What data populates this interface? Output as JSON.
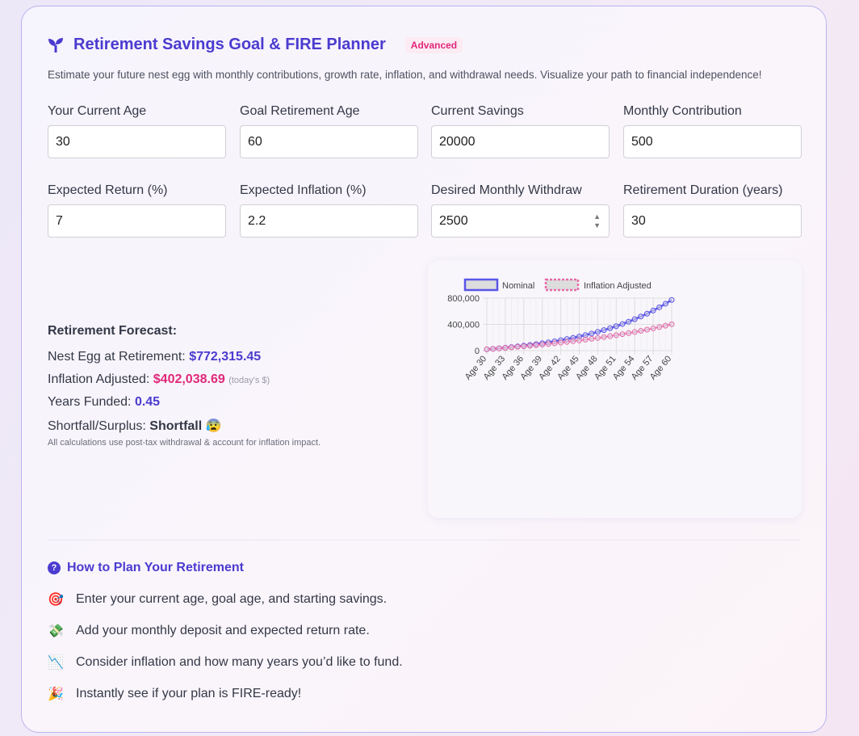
{
  "header": {
    "title": "Retirement Savings Goal & FIRE Planner",
    "badge": "Advanced",
    "subtitle": "Estimate your future nest egg with monthly contributions, growth rate, inflation, and withdrawal needs. Visualize your path to financial independence!"
  },
  "fields": [
    {
      "label": "Your Current Age",
      "value": "30"
    },
    {
      "label": "Goal Retirement Age",
      "value": "60"
    },
    {
      "label": "Current Savings",
      "value": "20000"
    },
    {
      "label": "Monthly Contribution",
      "value": "500"
    },
    {
      "label": "Expected Return (%)",
      "value": "7"
    },
    {
      "label": "Expected Inflation (%)",
      "value": "2.2"
    },
    {
      "label": "Desired Monthly Withdraw",
      "value": "2500"
    },
    {
      "label": "Retirement Duration (years)",
      "value": "30"
    }
  ],
  "forecast": {
    "heading": "Retirement Forecast:",
    "nest_label": "Nest Egg at Retirement:",
    "nest_value": "$772,315.45",
    "infl_label": "Inflation Adjusted:",
    "infl_value": "$402,038.69",
    "infl_note": "(today's $)",
    "years_label": "Years Funded:",
    "years_value": "0.45",
    "short_label": "Shortfall/Surplus:",
    "short_value": "Shortfall",
    "short_emoji": "😰",
    "note": "All calculations use post-tax withdrawal & account for inflation impact."
  },
  "chart_data": {
    "type": "line",
    "title": "",
    "xlabel": "",
    "ylabel": "",
    "ylim": [
      0,
      800000
    ],
    "yticks": [
      "0",
      "400,000",
      "800,000"
    ],
    "ytick_values": [
      0,
      400000,
      800000
    ],
    "x": [
      "Age 30",
      "Age 31",
      "Age 32",
      "Age 33",
      "Age 34",
      "Age 35",
      "Age 36",
      "Age 37",
      "Age 38",
      "Age 39",
      "Age 40",
      "Age 41",
      "Age 42",
      "Age 43",
      "Age 44",
      "Age 45",
      "Age 46",
      "Age 47",
      "Age 48",
      "Age 49",
      "Age 50",
      "Age 51",
      "Age 52",
      "Age 53",
      "Age 54",
      "Age 55",
      "Age 56",
      "Age 57",
      "Age 58",
      "Age 59",
      "Age 60"
    ],
    "legend_position": "top",
    "grid": true,
    "series": [
      {
        "name": "Nominal",
        "color": "#5b55e8",
        "values": [
          20000,
          27642,
          35837,
          44624,
          54046,
          64150,
          74984,
          86601,
          99058,
          112415,
          126738,
          142096,
          158565,
          176224,
          195159,
          215464,
          237237,
          260583,
          285616,
          312459,
          341243,
          372108,
          405203,
          440691,
          478744,
          519548,
          563301,
          610216,
          660523,
          714467,
          772315
        ]
      },
      {
        "name": "Inflation Adjusted",
        "color": "#e86aa8",
        "values": [
          20000,
          27047,
          34310,
          41802,
          49538,
          57534,
          65805,
          74361,
          83228,
          92416,
          101953,
          111843,
          122123,
          132799,
          143901,
          155458,
          167481,
          179998,
          193049,
          206639,
          220826,
          235616,
          251040,
          267150,
          283969,
          301537,
          319894,
          339084,
          359136,
          380096,
          402039
        ]
      }
    ]
  },
  "howto": {
    "heading": "How to Plan Your Retirement",
    "steps": [
      {
        "emoji": "🎯",
        "text": "Enter your current age, goal age, and starting savings."
      },
      {
        "emoji": "💸",
        "text": "Add your monthly deposit and expected return rate."
      },
      {
        "emoji": "📉",
        "text": "Consider inflation and how many years you’d like to fund."
      },
      {
        "emoji": "🎉",
        "text": "Instantly see if your plan is FIRE-ready!"
      }
    ]
  }
}
